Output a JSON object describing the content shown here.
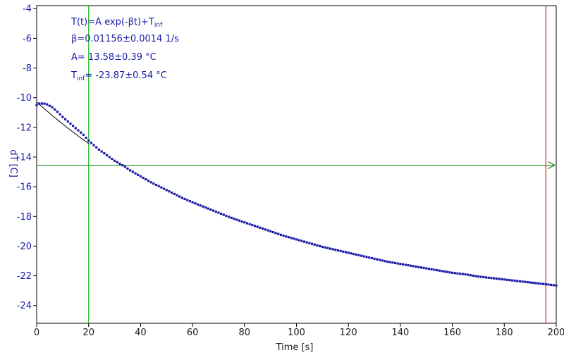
{
  "chart_data": {
    "type": "scatter",
    "xlabel": "Time [s]",
    "ylabel": "dT [C]",
    "xlim": [
      0,
      200
    ],
    "ylim": [
      -25.2,
      -3.8
    ],
    "x_ticks": [
      0,
      20,
      40,
      60,
      80,
      100,
      120,
      140,
      160,
      180,
      200
    ],
    "y_ticks": [
      -4,
      -6,
      -8,
      -10,
      -12,
      -14,
      -16,
      -18,
      -20,
      -22,
      -24
    ],
    "grid": false,
    "legend": "none",
    "annotation": {
      "line1": {
        "main": "T(t)=A exp(-βt)+T",
        "sub": "inf"
      },
      "line2": "β=0.01156±0.0014 1/s",
      "line3": "A= 13.58±0.39 °C",
      "line4": {
        "prefix": "T",
        "sub": "inf",
        "rest": "= -23.87±0.54 °C"
      }
    },
    "fit": {
      "A": 13.58,
      "beta": 0.01156,
      "T_inf": -23.87,
      "x_range": [
        0,
        20
      ]
    },
    "vertical_lines": [
      {
        "x": 20,
        "color": "#22bb22"
      },
      {
        "x": 196,
        "color": "#e02020"
      }
    ],
    "horizontal_line": {
      "y": -14.55,
      "color": "#228822",
      "arrow": true
    },
    "series": [
      {
        "marker": "square",
        "color": "#1a1aa8",
        "points": [
          [
            0,
            -10.5
          ],
          [
            1,
            -10.4
          ],
          [
            2,
            -10.4
          ],
          [
            3,
            -10.4
          ],
          [
            4,
            -10.45
          ],
          [
            5,
            -10.55
          ],
          [
            6,
            -10.65
          ],
          [
            7,
            -10.8
          ],
          [
            8,
            -10.95
          ],
          [
            10,
            -11.3
          ],
          [
            12,
            -11.6
          ],
          [
            14,
            -11.9
          ],
          [
            16,
            -12.2
          ],
          [
            18,
            -12.5
          ],
          [
            20,
            -12.9
          ],
          [
            22,
            -13.2
          ],
          [
            24,
            -13.5
          ],
          [
            26,
            -13.75
          ],
          [
            28,
            -14.0
          ],
          [
            30,
            -14.25
          ],
          [
            32,
            -14.45
          ],
          [
            34,
            -14.65
          ],
          [
            36,
            -14.9
          ],
          [
            38,
            -15.1
          ],
          [
            40,
            -15.3
          ],
          [
            44,
            -15.7
          ],
          [
            48,
            -16.05
          ],
          [
            52,
            -16.4
          ],
          [
            56,
            -16.75
          ],
          [
            60,
            -17.05
          ],
          [
            65,
            -17.4
          ],
          [
            70,
            -17.75
          ],
          [
            75,
            -18.1
          ],
          [
            80,
            -18.4
          ],
          [
            85,
            -18.7
          ],
          [
            90,
            -19.0
          ],
          [
            95,
            -19.3
          ],
          [
            100,
            -19.55
          ],
          [
            105,
            -19.8
          ],
          [
            110,
            -20.05
          ],
          [
            115,
            -20.25
          ],
          [
            120,
            -20.45
          ],
          [
            125,
            -20.65
          ],
          [
            130,
            -20.85
          ],
          [
            135,
            -21.05
          ],
          [
            140,
            -21.2
          ],
          [
            145,
            -21.35
          ],
          [
            150,
            -21.5
          ],
          [
            155,
            -21.65
          ],
          [
            160,
            -21.8
          ],
          [
            165,
            -21.9
          ],
          [
            170,
            -22.05
          ],
          [
            175,
            -22.15
          ],
          [
            180,
            -22.25
          ],
          [
            185,
            -22.35
          ],
          [
            190,
            -22.45
          ],
          [
            195,
            -22.55
          ],
          [
            200,
            -22.65
          ]
        ]
      }
    ]
  }
}
